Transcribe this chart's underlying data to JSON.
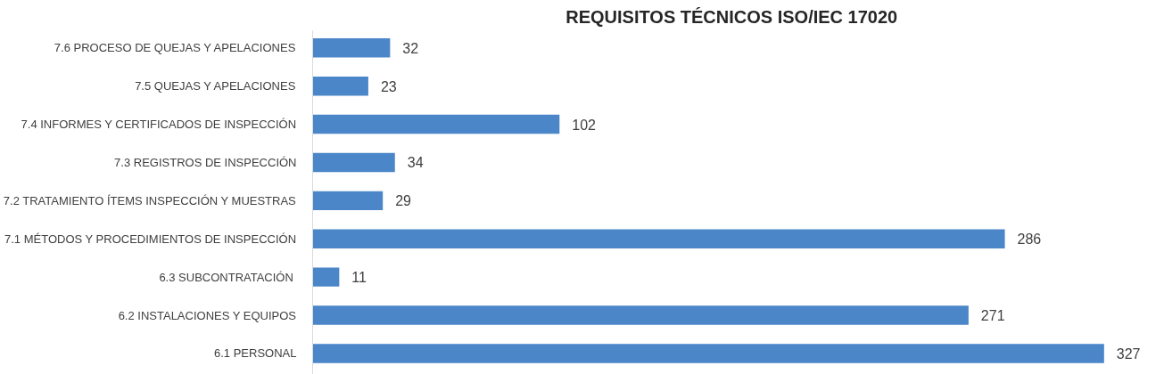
{
  "chart_data": {
    "type": "bar",
    "orientation": "horizontal",
    "title": "REQUISITOS TÉCNICOS  ISO/IEC 17020",
    "categories": [
      "7.6 PROCESO DE QUEJAS Y APELACIONES",
      "7.5 QUEJAS Y APELACIONES",
      "7.4 INFORMES Y CERTIFICADOS DE INSPECCIÓN",
      "7.3 REGISTROS DE INSPECCIÓN",
      "7.2 TRATAMIENTO ÍTEMS INSPECCIÓN Y MUESTRAS",
      "7.1 MÉTODOS Y PROCEDIMIENTOS DE INSPECCIÓN",
      "6.3 SUBCONTRATACIÓN ",
      "6.2 INSTALACIONES Y EQUIPOS",
      "6.1 PERSONAL"
    ],
    "values": [
      32,
      23,
      102,
      34,
      29,
      286,
      11,
      271,
      327
    ],
    "color": "#4a86c8",
    "data_labels": true,
    "grid": false
  }
}
